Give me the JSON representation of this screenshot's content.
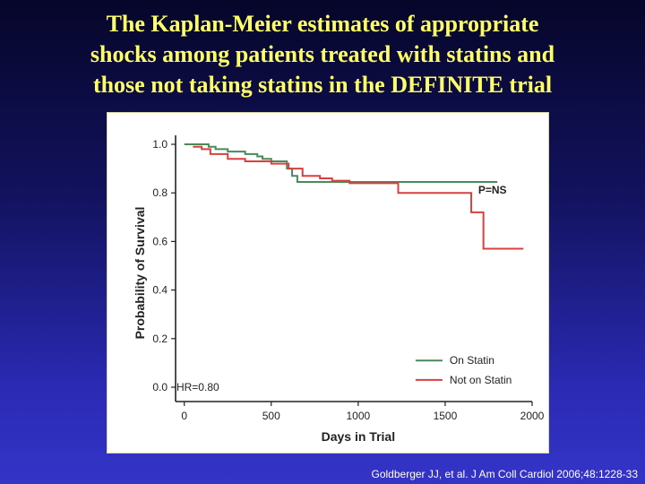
{
  "slide": {
    "title_lines": [
      "The Kaplan-Meier estimates of appropriate",
      "shocks among patients treated with statins and",
      "those not taking statins in the DEFINITE trial"
    ],
    "citation": "Goldberger JJ, et al. J Am Coll Cardiol 2006;48:1228-33"
  },
  "colors": {
    "title": "#ffff66",
    "on_statin": "#4a8a5a",
    "not_on_statin": "#d84040"
  },
  "chart_data": {
    "type": "line",
    "step": true,
    "xlabel": "Days in Trial",
    "ylabel": "Probability of Survival",
    "xlim": [
      -50,
      2000
    ],
    "ylim": [
      0.0,
      1.0
    ],
    "xticks": [
      0,
      500,
      1000,
      1500,
      2000
    ],
    "yticks": [
      0.0,
      0.2,
      0.4,
      0.6,
      0.8,
      1.0
    ],
    "ytick_labels": [
      "0.0",
      "0.2",
      "0.4",
      "0.6",
      "0.8",
      "1.0"
    ],
    "grid": false,
    "legend_position": "bottom-right",
    "annotations": {
      "pvalue": "P=NS",
      "hr": "HR=0.80"
    },
    "series": [
      {
        "name": "On Statin",
        "color": "#4a8a5a",
        "x": [
          0,
          100,
          140,
          180,
          250,
          350,
          380,
          420,
          450,
          500,
          590,
          620,
          650,
          1800
        ],
        "y": [
          1.0,
          1.0,
          0.99,
          0.98,
          0.97,
          0.96,
          0.96,
          0.95,
          0.94,
          0.93,
          0.9,
          0.87,
          0.845,
          0.845
        ]
      },
      {
        "name": "Not on Statin",
        "color": "#d84040",
        "x": [
          50,
          100,
          150,
          250,
          350,
          500,
          600,
          680,
          780,
          850,
          950,
          1200,
          1230,
          1500,
          1650,
          1700,
          1720,
          1950
        ],
        "y": [
          0.99,
          0.98,
          0.96,
          0.94,
          0.93,
          0.92,
          0.9,
          0.87,
          0.86,
          0.85,
          0.84,
          0.84,
          0.8,
          0.8,
          0.72,
          0.72,
          0.57,
          0.57
        ]
      }
    ]
  }
}
